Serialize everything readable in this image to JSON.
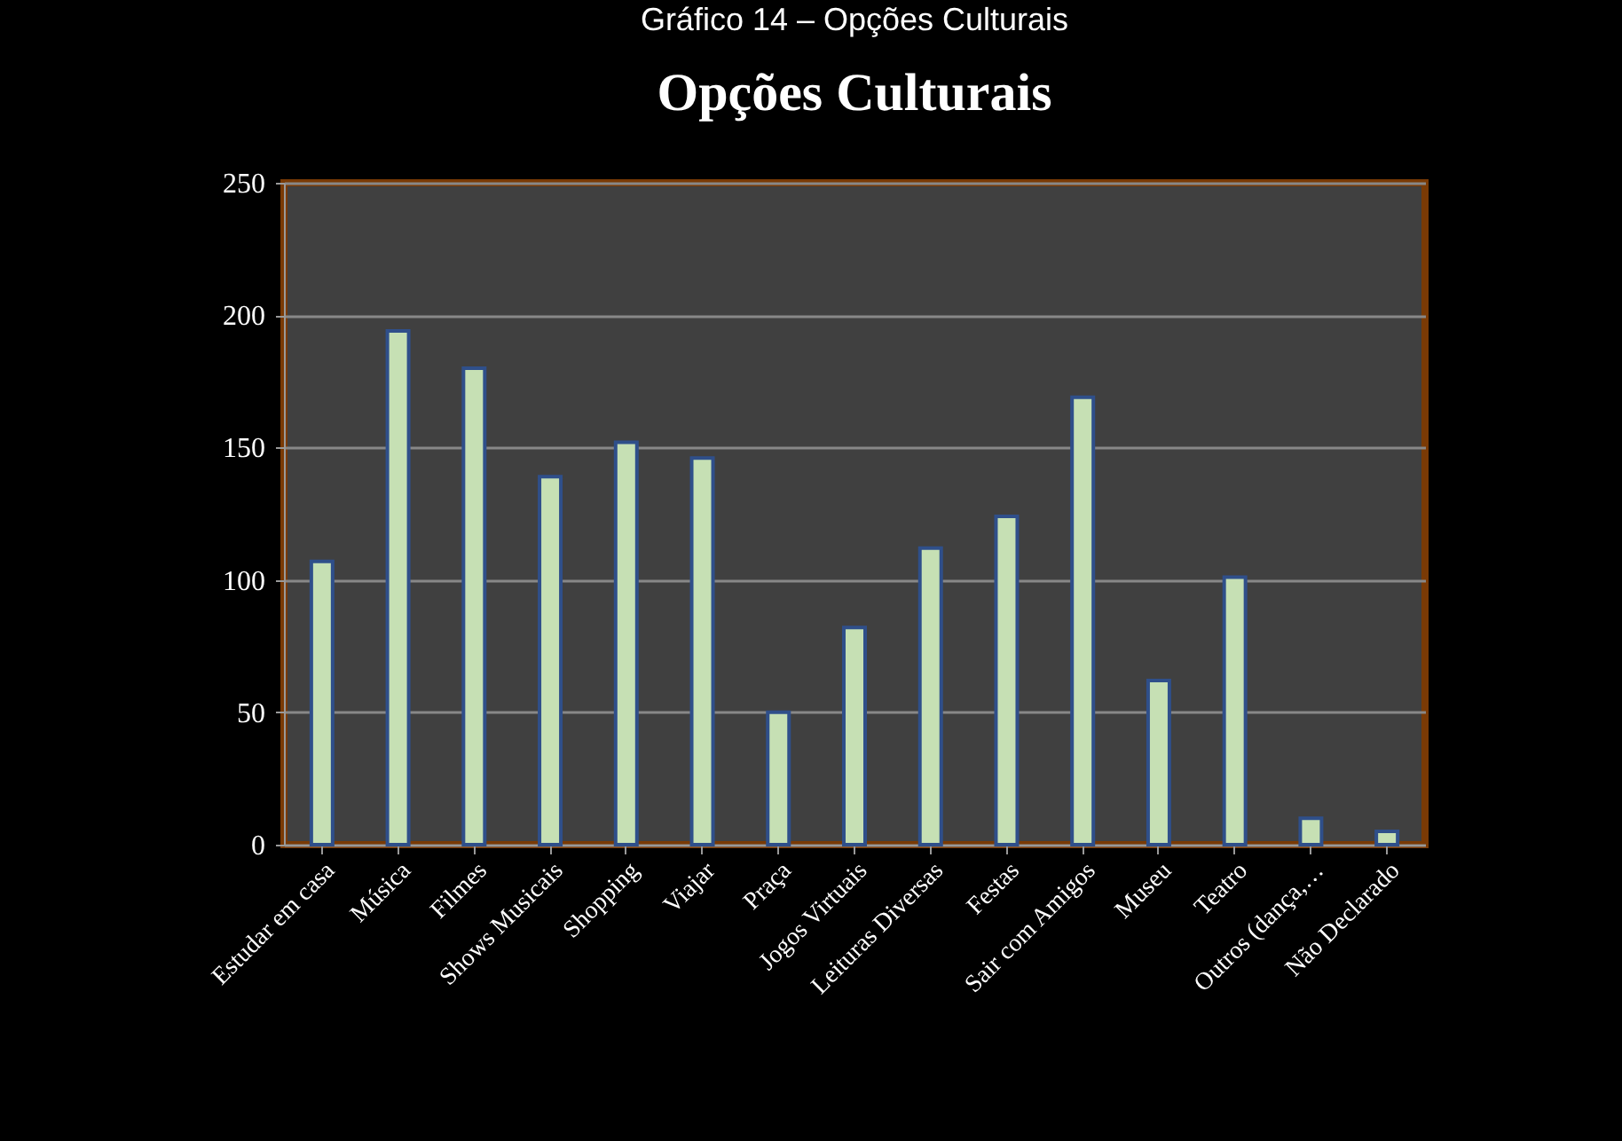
{
  "chart_data": {
    "type": "bar",
    "title": "Opções Culturais",
    "annotations": [
      "Gráfico 14 – Opções Culturais"
    ],
    "categories": [
      "Estudar em casa",
      "Música",
      "Filmes",
      "Shows Musicais",
      "Shopping",
      "Viajar",
      "Praça",
      "Jogos Virtuais",
      "Leituras Diversas",
      "Festas",
      "Sair com Amigos",
      "Museu",
      "Teatro",
      "Outros (dança,…",
      "Não Declarado"
    ],
    "values": [
      107,
      194,
      180,
      139,
      152,
      146,
      50,
      82,
      112,
      124,
      169,
      62,
      101,
      10,
      5
    ],
    "color": "#c6e0b4",
    "ylim": [
      0,
      250
    ],
    "yticks": [
      0,
      50,
      100,
      150,
      200,
      250
    ],
    "grid": "y"
  }
}
